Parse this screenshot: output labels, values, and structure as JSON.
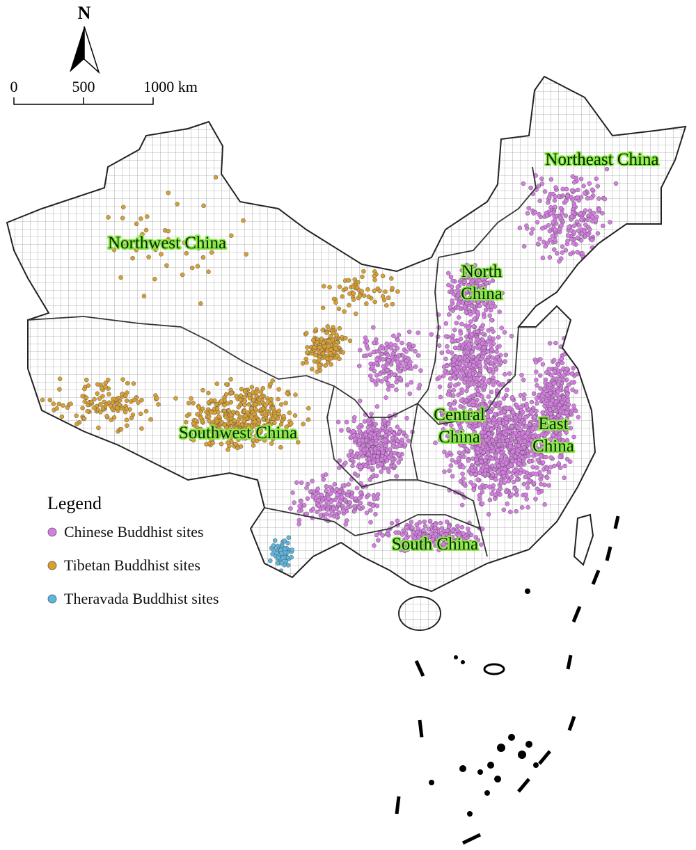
{
  "north_arrow": {
    "label": "N"
  },
  "scale_bar": {
    "labels": [
      "0",
      "500",
      "1000 km"
    ]
  },
  "regions": [
    {
      "lines": [
        "Northwest China"
      ]
    },
    {
      "lines": [
        "Northeast China"
      ]
    },
    {
      "lines": [
        "North",
        "China"
      ]
    },
    {
      "lines": [
        "Southwest China"
      ]
    },
    {
      "lines": [
        "Central",
        "China"
      ]
    },
    {
      "lines": [
        "East",
        "China"
      ]
    },
    {
      "lines": [
        "South China"
      ]
    }
  ],
  "legend": {
    "title": "Legend",
    "items": [
      {
        "label": "Chinese Buddhist sites",
        "color": "#d67de3"
      },
      {
        "label": "Tibetan Buddhist sites",
        "color": "#d9a030"
      },
      {
        "label": "Theravada Buddhist sites",
        "color": "#5ab8e0"
      }
    ]
  }
}
